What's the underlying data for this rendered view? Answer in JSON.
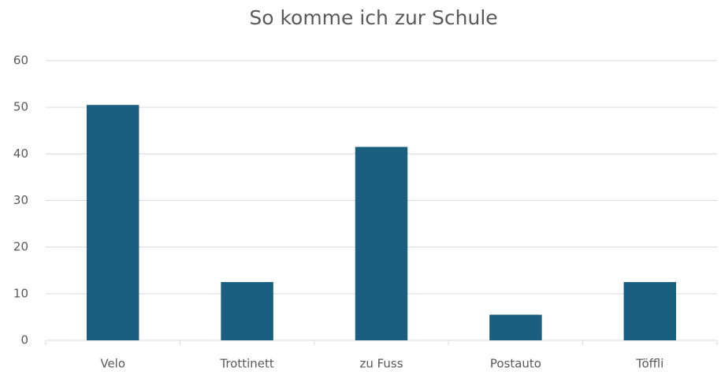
{
  "chart_data": {
    "type": "bar",
    "title": "So komme ich zur Schule",
    "categories": [
      "Velo",
      "Trottinett",
      "zu Fuss",
      "Postauto",
      "Töffli"
    ],
    "values": [
      50.5,
      12.5,
      41.5,
      5.5,
      12.5
    ],
    "color": "#1a5e80",
    "ylim": [
      0,
      60
    ],
    "yticks": [
      0,
      10,
      20,
      30,
      40,
      50,
      60
    ],
    "grid": true
  }
}
